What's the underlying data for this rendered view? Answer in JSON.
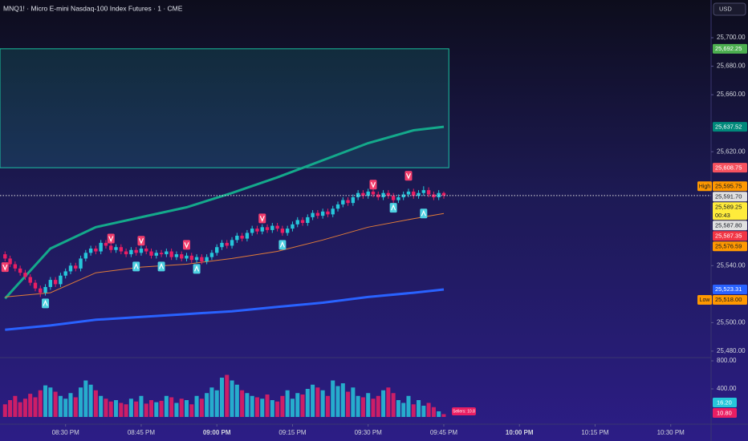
{
  "header": {
    "title": "MNQ1! · Micro E-mini Nasdaq-100 Index Futures · 1 · CME",
    "currency": "USD"
  },
  "chart_data": {
    "type": "candlestick",
    "x": [
      "08:18 PM",
      "08:19 PM",
      "08:20 PM",
      "08:21 PM",
      "08:22 PM",
      "08:23 PM",
      "08:24 PM",
      "08:25 PM",
      "08:26 PM",
      "08:27 PM",
      "08:28 PM",
      "08:29 PM",
      "08:30 PM",
      "08:31 PM",
      "08:32 PM",
      "08:33 PM",
      "08:34 PM",
      "08:35 PM",
      "08:36 PM",
      "08:37 PM",
      "08:38 PM",
      "08:39 PM",
      "08:40 PM",
      "08:41 PM",
      "08:42 PM",
      "08:43 PM",
      "08:44 PM",
      "08:45 PM",
      "08:46 PM",
      "08:47 PM",
      "08:48 PM",
      "08:49 PM",
      "08:50 PM",
      "08:51 PM",
      "08:52 PM",
      "08:53 PM",
      "08:54 PM",
      "08:55 PM",
      "08:56 PM",
      "08:57 PM",
      "08:58 PM",
      "08:59 PM",
      "09:00 PM",
      "09:01 PM",
      "09:02 PM",
      "09:03 PM",
      "09:04 PM",
      "09:05 PM",
      "09:06 PM",
      "09:07 PM",
      "09:08 PM",
      "09:09 PM",
      "09:10 PM",
      "09:11 PM",
      "09:12 PM",
      "09:13 PM",
      "09:14 PM",
      "09:15 PM",
      "09:16 PM",
      "09:17 PM",
      "09:18 PM",
      "09:19 PM",
      "09:20 PM",
      "09:21 PM",
      "09:22 PM",
      "09:23 PM",
      "09:24 PM",
      "09:25 PM",
      "09:26 PM",
      "09:27 PM",
      "09:28 PM",
      "09:29 PM",
      "09:30 PM",
      "09:31 PM",
      "09:32 PM",
      "09:33 PM",
      "09:34 PM",
      "09:35 PM",
      "09:36 PM",
      "09:37 PM",
      "09:38 PM",
      "09:39 PM",
      "09:40 PM",
      "09:41 PM",
      "09:42 PM",
      "09:43 PM",
      "09:44 PM",
      "09:45 PM"
    ],
    "open": [
      25548,
      25545,
      25541,
      25538,
      25535,
      25532,
      25528,
      25524,
      25521,
      25525,
      25530,
      25527,
      25533,
      25536,
      25540,
      25538,
      25545,
      25549,
      25552,
      25550,
      25556,
      25554,
      25551,
      25553,
      25550,
      25548,
      25551,
      25549,
      25552,
      25550,
      25547,
      25549,
      25548,
      25550,
      25546,
      25548,
      25545,
      25547,
      25544,
      25546,
      25543,
      25546,
      25549,
      25553,
      25556,
      25554,
      25558,
      25561,
      25559,
      25563,
      25566,
      25564,
      25567,
      25565,
      25568,
      25566,
      25563,
      25566,
      25569,
      25572,
      25570,
      25574,
      25577,
      25575,
      25578,
      25576,
      25580,
      25583,
      25586,
      25584,
      25588,
      25591,
      25589,
      25592,
      25590,
      25588,
      25591,
      25589,
      25586,
      25588,
      25590,
      25592,
      25589,
      25591,
      25593,
      25590,
      25588,
      25591
    ],
    "high": [
      25550,
      25547,
      25543,
      25540,
      25537,
      25534,
      25530,
      25526,
      25527,
      25532,
      25532,
      25535,
      25538,
      25542,
      25542,
      25547,
      25551,
      25554,
      25554,
      25558,
      25558,
      25556,
      25555,
      25555,
      25552,
      25553,
      25553,
      25554,
      25554,
      25552,
      25551,
      25551,
      25552,
      25552,
      25550,
      25550,
      25549,
      25549,
      25548,
      25548,
      25548,
      25551,
      25555,
      25558,
      25558,
      25560,
      25563,
      25563,
      25565,
      25568,
      25568,
      25569,
      25569,
      25570,
      25570,
      25568,
      25568,
      25571,
      25574,
      25574,
      25576,
      25579,
      25579,
      25580,
      25580,
      25582,
      25585,
      25588,
      25588,
      25590,
      25593,
      25593,
      25594,
      25594,
      25592,
      25593,
      25593,
      25591,
      25590,
      25592,
      25594,
      25594,
      25593,
      25595.75,
      25595,
      25592,
      25593,
      25592
    ],
    "low": [
      25543,
      25539,
      25536,
      25533,
      25530,
      25526,
      25522,
      25518,
      25519,
      25523,
      25525,
      25525,
      25531,
      25534,
      25536,
      25536,
      25543,
      25547,
      25548,
      25548,
      25552,
      25549,
      25549,
      25548,
      25546,
      25546,
      25547,
      25547,
      25548,
      25545,
      25545,
      25546,
      25546,
      25544,
      25544,
      25543,
      25543,
      25542,
      25542,
      25541,
      25541,
      25544,
      25547,
      25551,
      25552,
      25552,
      25556,
      25557,
      25557,
      25561,
      25562,
      25562,
      25563,
      25563,
      25564,
      25561,
      25561,
      25564,
      25567,
      25568,
      25568,
      25572,
      25573,
      25573,
      25574,
      25574,
      25578,
      25581,
      25582,
      25582,
      25586,
      25587,
      25587,
      25588,
      25586,
      25586,
      25587,
      25584,
      25584,
      25586,
      25588,
      25587,
      25587,
      25589,
      25588,
      25586,
      25586,
      25587
    ],
    "close": [
      25545,
      25541,
      25538,
      25535,
      25532,
      25528,
      25524,
      25521,
      25525,
      25530,
      25527,
      25533,
      25536,
      25540,
      25538,
      25545,
      25549,
      25552,
      25550,
      25556,
      25554,
      25551,
      25553,
      25550,
      25548,
      25551,
      25549,
      25552,
      25550,
      25547,
      25549,
      25548,
      25550,
      25546,
      25548,
      25545,
      25547,
      25544,
      25546,
      25543,
      25546,
      25549,
      25553,
      25556,
      25554,
      25558,
      25561,
      25559,
      25563,
      25566,
      25564,
      25567,
      25565,
      25568,
      25566,
      25563,
      25566,
      25569,
      25572,
      25570,
      25574,
      25577,
      25575,
      25578,
      25576,
      25580,
      25583,
      25586,
      25584,
      25588,
      25591,
      25589,
      25592,
      25590,
      25588,
      25591,
      25589,
      25586,
      25588,
      25590,
      25592,
      25589,
      25591,
      25593,
      25590,
      25588,
      25591,
      25589.25
    ],
    "up_color": "#26c6da",
    "down_color": "#e91e63",
    "xlim": [
      "08:17 PM",
      "10:38 PM"
    ],
    "xticks": [
      "08:30 PM",
      "08:45 PM",
      "09:00 PM",
      "09:15 PM",
      "09:30 PM",
      "09:45 PM",
      "10:00 PM",
      "10:15 PM",
      "10:30 PM"
    ],
    "ylim": [
      25476,
      25726.5
    ],
    "yticks": [
      {
        "value": 25700,
        "label": "25,700.00"
      },
      {
        "value": 25680,
        "label": "25,680.00"
      },
      {
        "value": 25660,
        "label": "25,660.00"
      },
      {
        "value": 25620,
        "label": "25,620.00"
      },
      {
        "value": 25540,
        "label": "25,540.00"
      },
      {
        "value": 25500,
        "label": "25,500.00"
      },
      {
        "value": 25480,
        "label": "25,480.00"
      }
    ],
    "zone": {
      "x_end": "09:46 PM",
      "values": [
        25692.25,
        25608.75
      ],
      "color": "#1de9b6"
    },
    "lines": [
      {
        "color": "#14a98b",
        "x": [
          "08:18 PM",
          "08:27 PM",
          "08:36 PM",
          "08:45 PM",
          "08:54 PM",
          "09:03 PM",
          "09:12 PM",
          "09:21 PM",
          "09:30 PM",
          "09:39 PM",
          "09:45 PM"
        ],
        "values": [
          25517,
          25552,
          25567,
          25574,
          25581,
          25591,
          25602,
          25614,
          25626,
          25635,
          25637.52
        ]
      },
      {
        "color": "#2962ff",
        "x": [
          "08:18 PM",
          "08:27 PM",
          "08:36 PM",
          "08:45 PM",
          "08:54 PM",
          "09:03 PM",
          "09:12 PM",
          "09:21 PM",
          "09:30 PM",
          "09:39 PM",
          "09:45 PM"
        ],
        "values": [
          25495,
          25498,
          25502,
          25504,
          25506,
          25508,
          25511,
          25514,
          25518,
          25521,
          25523.31
        ]
      },
      {
        "color": "#e07b39",
        "x": [
          "08:18 PM",
          "08:27 PM",
          "08:36 PM",
          "08:45 PM",
          "08:54 PM",
          "09:03 PM",
          "09:12 PM",
          "09:21 PM",
          "09:30 PM",
          "09:39 PM",
          "09:45 PM"
        ],
        "values": [
          25518,
          25521,
          25535,
          25539,
          25541,
          25545,
          25550,
          25558,
          25567,
          25573,
          25576.59
        ]
      }
    ],
    "sell_signals": {
      "color": "#f23d6d",
      "x": [
        "08:18 PM",
        "08:39 PM",
        "08:45 PM",
        "08:54 PM",
        "09:09 PM",
        "09:31 PM",
        "09:38 PM"
      ],
      "values": [
        25539,
        25559,
        25557.5,
        25554.6,
        25573.2,
        25596.9,
        25603.1
      ]
    },
    "buy_signals": {
      "color": "#4dd0e1",
      "x": [
        "08:26 PM",
        "08:44 PM",
        "08:49 PM",
        "08:56 PM",
        "09:13 PM",
        "09:35 PM",
        "09:41 PM"
      ],
      "values": [
        25513.5,
        25539.4,
        25539.4,
        25537.7,
        25554.6,
        25580.6,
        25576.6
      ]
    },
    "price_badges": [
      {
        "value": 25692.25,
        "label": "25,692.25",
        "color": "#4caf50"
      },
      {
        "value": 25637.52,
        "label": "25,637.52",
        "color": "#00897b"
      },
      {
        "value": 25608.75,
        "label": "25,608.75",
        "color": "#f7525f"
      },
      {
        "value": 25595.75,
        "label": "25,595.75",
        "color": "#ff9800",
        "tag": "High"
      },
      {
        "value": 25591.7,
        "label": "25,591.70",
        "color": "#e0e0e0"
      },
      {
        "value": 25589.25,
        "label": "25,589.25",
        "color": "#ffeb3b",
        "countdown": "00:43"
      },
      {
        "value": 25587.8,
        "label": "25,587.80",
        "color": "#e0e0e0"
      },
      {
        "value": 25587.35,
        "label": "25,587.35",
        "color": "#f23645"
      },
      {
        "value": 25576.59,
        "label": "25,576.59",
        "color": "#ff9800"
      },
      {
        "value": 25523.31,
        "label": "25,523.31",
        "color": "#2962ff"
      },
      {
        "value": 25518,
        "label": "25,518.00",
        "color": "#ff9800",
        "tag": "Low"
      }
    ],
    "volume": {
      "values": [
        180,
        240,
        300,
        210,
        260,
        330,
        280,
        380,
        450,
        420,
        360,
        300,
        260,
        340,
        280,
        420,
        520,
        460,
        380,
        300,
        260,
        220,
        240,
        200,
        180,
        260,
        220,
        300,
        190,
        240,
        210,
        230,
        300,
        280,
        200,
        260,
        240,
        180,
        300,
        260,
        340,
        420,
        380,
        560,
        600,
        520,
        460,
        380,
        340,
        300,
        280,
        260,
        320,
        240,
        220,
        300,
        380,
        260,
        340,
        320,
        400,
        460,
        420,
        380,
        300,
        520,
        440,
        480,
        360,
        420,
        300,
        280,
        340,
        260,
        300,
        380,
        420,
        340,
        240,
        200,
        300,
        180,
        240,
        160,
        200,
        140,
        80,
        40
      ],
      "ylim": [
        0,
        846
      ],
      "yticks": [
        {
          "value": 800,
          "label": "800.00"
        },
        {
          "value": 400,
          "label": "400.00"
        }
      ],
      "badges": [
        {
          "value": 16.2,
          "label": "16.20",
          "color": "#26c6da"
        },
        {
          "value": 10.8,
          "label": "10.80",
          "color": "#e91e63"
        }
      ],
      "sellers_label": "Sellers: 10.8"
    }
  }
}
